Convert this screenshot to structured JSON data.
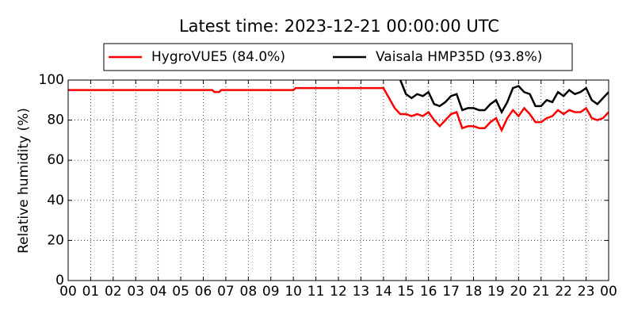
{
  "chart_data": {
    "type": "line",
    "title": "Latest time: 2023-12-21 00:00:00 UTC",
    "y_label": "Relative humidity (%)",
    "x": [
      0,
      1,
      2,
      3,
      4,
      5,
      6,
      6.4,
      6.5,
      6.7,
      6.8,
      7,
      8,
      9,
      10,
      10.1,
      11,
      12,
      13,
      14,
      14.25,
      14.5,
      14.75,
      15,
      15.25,
      15.5,
      15.75,
      16,
      16.25,
      16.5,
      16.75,
      17,
      17.25,
      17.5,
      17.75,
      18,
      18.25,
      18.5,
      18.75,
      19,
      19.25,
      19.5,
      19.75,
      20,
      20.25,
      20.5,
      20.75,
      21,
      21.25,
      21.5,
      21.75,
      22,
      22.25,
      22.5,
      22.75,
      23,
      23.25,
      23.5,
      23.75,
      24
    ],
    "series": [
      {
        "name": "HygroVUE5 (84.0%)",
        "color": "#ff0000",
        "values": [
          95,
          95,
          95,
          95,
          95,
          95,
          95,
          95,
          94,
          94,
          95,
          95,
          95,
          95,
          95,
          96,
          96,
          96,
          96,
          96,
          91,
          86,
          83,
          83,
          82,
          83,
          82,
          84,
          80,
          77,
          80,
          83,
          84,
          76,
          77,
          77,
          76,
          76,
          79,
          81,
          75,
          81,
          85,
          82,
          86,
          83,
          79,
          79,
          81,
          82,
          85,
          83,
          85,
          84,
          84,
          86,
          81,
          80,
          81,
          84
        ]
      },
      {
        "name": "Vaisala HMP35D (93.8%)",
        "color": "#000000",
        "values": [
          null,
          null,
          null,
          null,
          null,
          null,
          null,
          null,
          null,
          null,
          null,
          null,
          null,
          null,
          null,
          null,
          null,
          null,
          null,
          null,
          null,
          null,
          100,
          93,
          91,
          93,
          92,
          94,
          88,
          87,
          89,
          92,
          93,
          85,
          86,
          86,
          85,
          85,
          88,
          90,
          84,
          89,
          96,
          97,
          94,
          93,
          87,
          87,
          90,
          89,
          94,
          92,
          95,
          93,
          94,
          96,
          90,
          88,
          91,
          94
        ]
      }
    ],
    "xlim": [
      0,
      24
    ],
    "xticks": [
      {
        "value": 0,
        "label": "00"
      },
      {
        "value": 1,
        "label": "01"
      },
      {
        "value": 2,
        "label": "02"
      },
      {
        "value": 3,
        "label": "03"
      },
      {
        "value": 4,
        "label": "04"
      },
      {
        "value": 5,
        "label": "05"
      },
      {
        "value": 6,
        "label": "06"
      },
      {
        "value": 7,
        "label": "07"
      },
      {
        "value": 8,
        "label": "08"
      },
      {
        "value": 9,
        "label": "09"
      },
      {
        "value": 10,
        "label": "10"
      },
      {
        "value": 11,
        "label": "11"
      },
      {
        "value": 12,
        "label": "12"
      },
      {
        "value": 13,
        "label": "13"
      },
      {
        "value": 14,
        "label": "14"
      },
      {
        "value": 15,
        "label": "15"
      },
      {
        "value": 16,
        "label": "16"
      },
      {
        "value": 17,
        "label": "17"
      },
      {
        "value": 18,
        "label": "18"
      },
      {
        "value": 19,
        "label": "19"
      },
      {
        "value": 20,
        "label": "20"
      },
      {
        "value": 21,
        "label": "21"
      },
      {
        "value": 22,
        "label": "22"
      },
      {
        "value": 23,
        "label": "23"
      },
      {
        "value": 24,
        "label": "00"
      }
    ],
    "ylim": [
      0,
      100
    ],
    "yticks": [
      0,
      20,
      40,
      60,
      80,
      100
    ],
    "grid": true
  }
}
